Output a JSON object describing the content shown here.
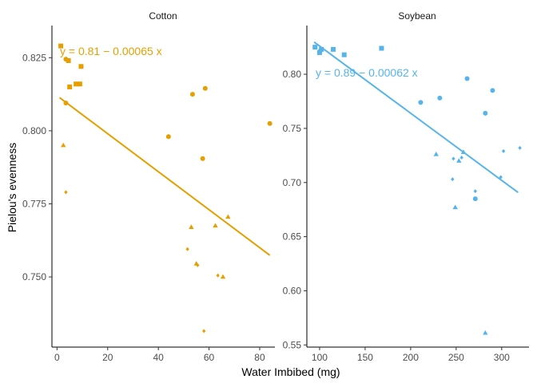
{
  "chart_data": [
    {
      "type": "scatter",
      "panel": "Cotton",
      "color": "#E69F00",
      "xlabel": "Water Imbibed (mg)",
      "ylabel": "Pielou's evenness",
      "xlim": [
        -2,
        86
      ],
      "ylim": [
        0.726,
        0.836
      ],
      "xticks": [
        0,
        20,
        40,
        60,
        80
      ],
      "xtick_labels": [
        "0",
        "20",
        "40",
        "60",
        "80"
      ],
      "yticks": [
        0.75,
        0.775,
        0.8,
        0.825
      ],
      "ytick_labels": [
        "0.750",
        "0.775",
        "0.800",
        "0.825"
      ],
      "equation": "y = 0.81 − 0.00065 x",
      "fit": {
        "intercept": 0.812,
        "slope": -0.00065,
        "x_range": [
          1,
          84
        ]
      },
      "points": [
        {
          "x": 1.5,
          "y": 0.829,
          "shape": "square"
        },
        {
          "x": 4.5,
          "y": 0.824,
          "shape": "square"
        },
        {
          "x": 5,
          "y": 0.815,
          "shape": "square"
        },
        {
          "x": 7.5,
          "y": 0.816,
          "shape": "square"
        },
        {
          "x": 9,
          "y": 0.816,
          "shape": "square"
        },
        {
          "x": 9.5,
          "y": 0.822,
          "shape": "square"
        },
        {
          "x": 3.5,
          "y": 0.8245,
          "shape": "circle"
        },
        {
          "x": 3.5,
          "y": 0.8095,
          "shape": "circle"
        },
        {
          "x": 44,
          "y": 0.798,
          "shape": "circle"
        },
        {
          "x": 53.5,
          "y": 0.8125,
          "shape": "circle"
        },
        {
          "x": 57.5,
          "y": 0.7905,
          "shape": "circle"
        },
        {
          "x": 58.5,
          "y": 0.8145,
          "shape": "circle"
        },
        {
          "x": 84,
          "y": 0.8025,
          "shape": "circle"
        },
        {
          "x": 2.5,
          "y": 0.795,
          "shape": "triangle"
        },
        {
          "x": 53,
          "y": 0.767,
          "shape": "triangle"
        },
        {
          "x": 55,
          "y": 0.7545,
          "shape": "triangle"
        },
        {
          "x": 62.5,
          "y": 0.7675,
          "shape": "triangle"
        },
        {
          "x": 65.5,
          "y": 0.75,
          "shape": "triangle"
        },
        {
          "x": 67.5,
          "y": 0.7705,
          "shape": "triangle"
        },
        {
          "x": 3.5,
          "y": 0.779,
          "shape": "diamond"
        },
        {
          "x": 51.5,
          "y": 0.7595,
          "shape": "diamond"
        },
        {
          "x": 55.5,
          "y": 0.754,
          "shape": "diamond"
        },
        {
          "x": 58,
          "y": 0.7315,
          "shape": "diamond"
        },
        {
          "x": 63.5,
          "y": 0.7505,
          "shape": "diamond"
        }
      ]
    },
    {
      "type": "scatter",
      "panel": "Soybean",
      "color": "#56B4E9",
      "xlabel": "Water Imbibed (mg)",
      "ylabel": "Pielou's evenness",
      "xlim": [
        86,
        330
      ],
      "ylim": [
        0.548,
        0.845
      ],
      "xticks": [
        100,
        150,
        200,
        250,
        300
      ],
      "xtick_labels": [
        "100",
        "150",
        "200",
        "250",
        "300"
      ],
      "yticks": [
        0.55,
        0.6,
        0.65,
        0.7,
        0.75,
        0.8
      ],
      "ytick_labels": [
        "0.55",
        "0.60",
        "0.65",
        "0.70",
        "0.75",
        "0.80"
      ],
      "equation": "y = 0.89 − 0.00062 x",
      "fit": {
        "intercept": 0.888,
        "slope": -0.00062,
        "x_range": [
          94,
          318
        ]
      },
      "points": [
        {
          "x": 95,
          "y": 0.825,
          "shape": "square"
        },
        {
          "x": 100,
          "y": 0.82,
          "shape": "square"
        },
        {
          "x": 102,
          "y": 0.823,
          "shape": "square"
        },
        {
          "x": 115,
          "y": 0.823,
          "shape": "square"
        },
        {
          "x": 127,
          "y": 0.818,
          "shape": "square"
        },
        {
          "x": 168,
          "y": 0.824,
          "shape": "square"
        },
        {
          "x": 101,
          "y": 0.822,
          "shape": "circle"
        },
        {
          "x": 211,
          "y": 0.774,
          "shape": "circle"
        },
        {
          "x": 232,
          "y": 0.778,
          "shape": "circle"
        },
        {
          "x": 262,
          "y": 0.796,
          "shape": "circle"
        },
        {
          "x": 271,
          "y": 0.685,
          "shape": "circle"
        },
        {
          "x": 282,
          "y": 0.764,
          "shape": "circle"
        },
        {
          "x": 290,
          "y": 0.785,
          "shape": "circle"
        },
        {
          "x": 228,
          "y": 0.726,
          "shape": "triangle"
        },
        {
          "x": 249,
          "y": 0.677,
          "shape": "triangle"
        },
        {
          "x": 253,
          "y": 0.72,
          "shape": "triangle"
        },
        {
          "x": 258,
          "y": 0.728,
          "shape": "triangle"
        },
        {
          "x": 282,
          "y": 0.561,
          "shape": "triangle"
        },
        {
          "x": 246,
          "y": 0.703,
          "shape": "diamond"
        },
        {
          "x": 247,
          "y": 0.722,
          "shape": "diamond"
        },
        {
          "x": 256,
          "y": 0.723,
          "shape": "diamond"
        },
        {
          "x": 271,
          "y": 0.692,
          "shape": "diamond"
        },
        {
          "x": 299,
          "y": 0.705,
          "shape": "diamond"
        },
        {
          "x": 302,
          "y": 0.729,
          "shape": "diamond"
        },
        {
          "x": 320,
          "y": 0.732,
          "shape": "diamond"
        }
      ]
    }
  ]
}
